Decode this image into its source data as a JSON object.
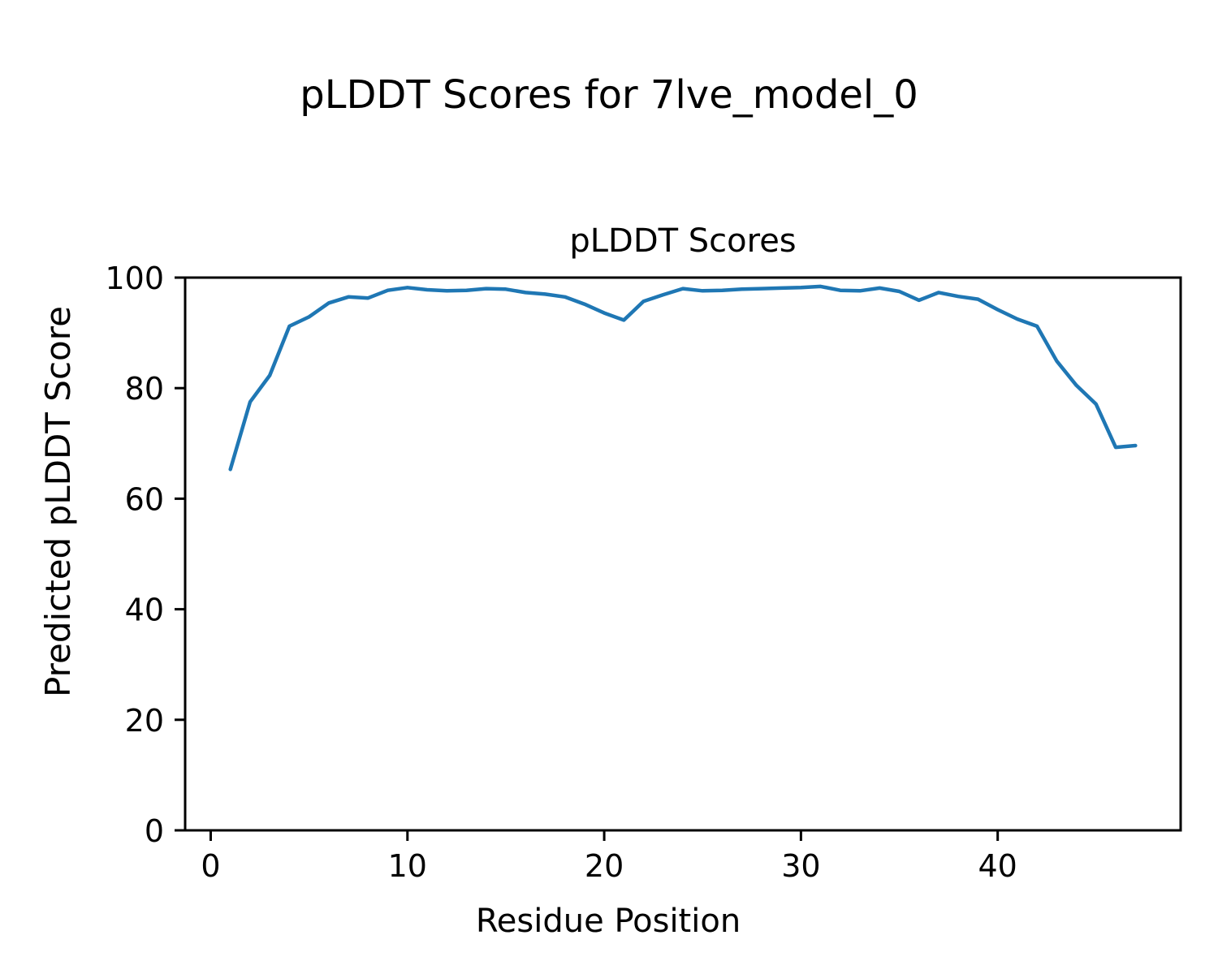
{
  "figure": {
    "suptitle": "pLDDT Scores for 7lve_model_0",
    "axes_title": "pLDDT Scores",
    "xlabel": "Residue Position",
    "ylabel": "Predicted pLDDT Score",
    "background_color": "#ffffff",
    "text_color": "#000000"
  },
  "chart_data": {
    "type": "line",
    "title": "pLDDT Scores",
    "xlabel": "Residue Position",
    "ylabel": "Predicted pLDDT Score",
    "series": [
      {
        "name": "pLDDT",
        "color": "#1f77b4",
        "line_width": 4.5,
        "x": [
          1,
          2,
          3,
          4,
          5,
          6,
          7,
          8,
          9,
          10,
          11,
          12,
          13,
          14,
          15,
          16,
          17,
          18,
          19,
          20,
          21,
          22,
          23,
          24,
          25,
          26,
          27,
          28,
          29,
          30,
          31,
          32,
          33,
          34,
          35,
          36,
          37,
          38,
          39,
          40,
          41,
          42,
          43,
          44,
          45,
          46,
          47
        ],
        "y": [
          65.3,
          77.5,
          82.3,
          91.2,
          92.9,
          95.4,
          96.5,
          96.3,
          97.7,
          98.2,
          97.8,
          97.6,
          97.7,
          98.0,
          97.9,
          97.3,
          97.0,
          96.5,
          95.2,
          93.6,
          92.3,
          95.7,
          96.9,
          98.0,
          97.6,
          97.7,
          97.9,
          98.0,
          98.1,
          98.2,
          98.4,
          97.7,
          97.6,
          98.1,
          97.5,
          95.9,
          97.3,
          96.6,
          96.1,
          94.2,
          92.5,
          91.2,
          84.9,
          80.5,
          77.1,
          69.3,
          69.6
        ]
      }
    ],
    "xlim": [
      -1.3,
      49.3
    ],
    "ylim": [
      0,
      100
    ],
    "x_ticks": [
      0,
      10,
      20,
      30,
      40
    ],
    "y_ticks": [
      0,
      20,
      40,
      60,
      80,
      100
    ],
    "grid": false,
    "legend_position": "none"
  }
}
